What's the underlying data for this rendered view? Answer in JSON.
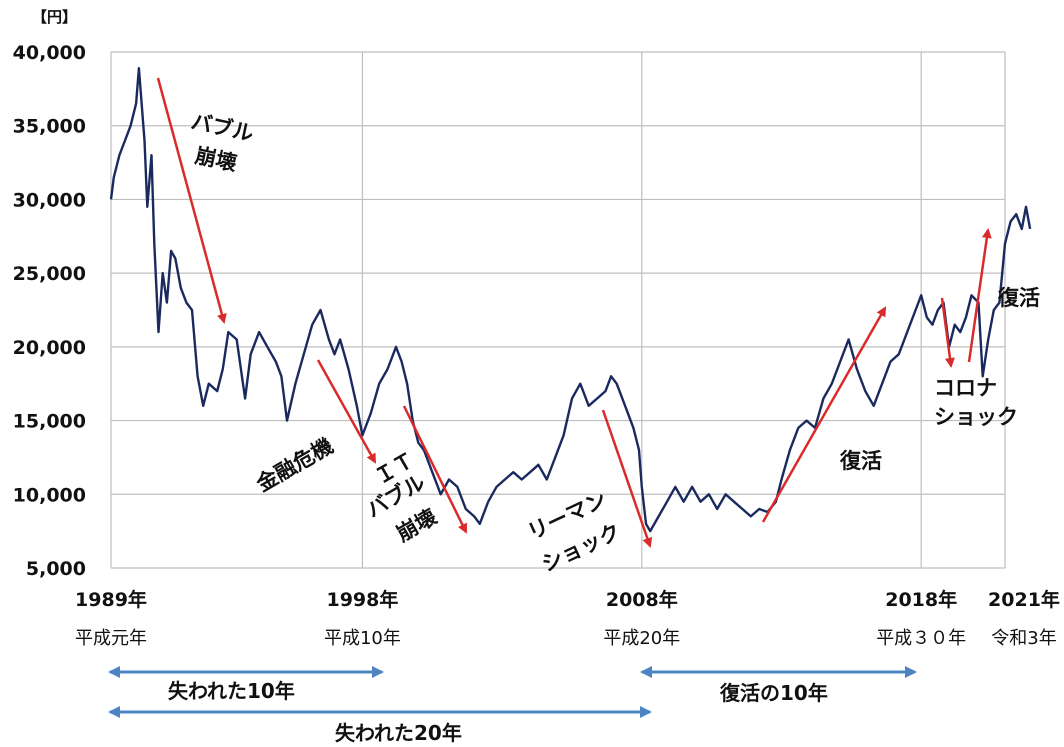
{
  "chart_data": {
    "type": "line",
    "unit_label": "【円】",
    "ylim": [
      5000,
      40000
    ],
    "y_ticks": [
      {
        "value": 40000,
        "label": "40,000"
      },
      {
        "value": 35000,
        "label": "35,000"
      },
      {
        "value": 30000,
        "label": "30,000"
      },
      {
        "value": 25000,
        "label": "25,000"
      },
      {
        "value": 20000,
        "label": "20,000"
      },
      {
        "value": 15000,
        "label": "15,000"
      },
      {
        "value": 10000,
        "label": "10,000"
      },
      {
        "value": 5000,
        "label": "5,000"
      }
    ],
    "xlim": [
      1989,
      2021
    ],
    "x_ticks": [
      {
        "value": 1989,
        "label": "1989年",
        "era": "平成元年"
      },
      {
        "value": 1998,
        "label": "1998年",
        "era": "平成10年"
      },
      {
        "value": 2008,
        "label": "2008年",
        "era": "平成20年"
      },
      {
        "value": 2018,
        "label": "2018年",
        "era": "平成３０年"
      },
      {
        "value": 2021,
        "label": "2021年",
        "era": "令和3年"
      }
    ],
    "grid": true,
    "series": [
      {
        "color": "#1a2a5e",
        "points": [
          [
            1989.0,
            30000
          ],
          [
            1989.1,
            31500
          ],
          [
            1989.3,
            33000
          ],
          [
            1989.5,
            34000
          ],
          [
            1989.7,
            35000
          ],
          [
            1989.9,
            36500
          ],
          [
            1990.0,
            38900
          ],
          [
            1990.2,
            34000
          ],
          [
            1990.3,
            29500
          ],
          [
            1990.45,
            33000
          ],
          [
            1990.55,
            27000
          ],
          [
            1990.7,
            21000
          ],
          [
            1990.85,
            25000
          ],
          [
            1991.0,
            23000
          ],
          [
            1991.15,
            26500
          ],
          [
            1991.3,
            26000
          ],
          [
            1991.5,
            24000
          ],
          [
            1991.7,
            23000
          ],
          [
            1991.9,
            22500
          ],
          [
            1992.1,
            18000
          ],
          [
            1992.3,
            16000
          ],
          [
            1992.5,
            17500
          ],
          [
            1992.8,
            17000
          ],
          [
            1993.0,
            18500
          ],
          [
            1993.2,
            21000
          ],
          [
            1993.5,
            20500
          ],
          [
            1993.8,
            16500
          ],
          [
            1994.0,
            19500
          ],
          [
            1994.3,
            21000
          ],
          [
            1994.6,
            20000
          ],
          [
            1994.9,
            19000
          ],
          [
            1995.1,
            18000
          ],
          [
            1995.3,
            15000
          ],
          [
            1995.6,
            17500
          ],
          [
            1995.9,
            19500
          ],
          [
            1996.2,
            21500
          ],
          [
            1996.5,
            22500
          ],
          [
            1996.8,
            20500
          ],
          [
            1997.0,
            19500
          ],
          [
            1997.2,
            20500
          ],
          [
            1997.5,
            18500
          ],
          [
            1997.8,
            16000
          ],
          [
            1998.0,
            14000
          ],
          [
            1998.3,
            15500
          ],
          [
            1998.6,
            17500
          ],
          [
            1998.9,
            18500
          ],
          [
            1999.2,
            20000
          ],
          [
            1999.4,
            19000
          ],
          [
            1999.6,
            17500
          ],
          [
            1999.8,
            15000
          ],
          [
            2000.0,
            13500
          ],
          [
            2000.2,
            13000
          ],
          [
            2000.5,
            11500
          ],
          [
            2000.8,
            10000
          ],
          [
            2001.1,
            11000
          ],
          [
            2001.4,
            10500
          ],
          [
            2001.7,
            9000
          ],
          [
            2002.0,
            8500
          ],
          [
            2002.2,
            8000
          ],
          [
            2002.5,
            9500
          ],
          [
            2002.8,
            10500
          ],
          [
            2003.1,
            11000
          ],
          [
            2003.4,
            11500
          ],
          [
            2003.7,
            11000
          ],
          [
            2004.0,
            11500
          ],
          [
            2004.3,
            12000
          ],
          [
            2004.6,
            11000
          ],
          [
            2004.9,
            12500
          ],
          [
            2005.2,
            14000
          ],
          [
            2005.5,
            16500
          ],
          [
            2005.8,
            17500
          ],
          [
            2006.1,
            16000
          ],
          [
            2006.4,
            16500
          ],
          [
            2006.7,
            17000
          ],
          [
            2006.9,
            18000
          ],
          [
            2007.1,
            17500
          ],
          [
            2007.4,
            16000
          ],
          [
            2007.7,
            14500
          ],
          [
            2007.9,
            13000
          ],
          [
            2008.0,
            10500
          ],
          [
            2008.15,
            8000
          ],
          [
            2008.3,
            7500
          ],
          [
            2008.6,
            8500
          ],
          [
            2008.9,
            9500
          ],
          [
            2009.2,
            10500
          ],
          [
            2009.5,
            9500
          ],
          [
            2009.8,
            10500
          ],
          [
            2010.1,
            9500
          ],
          [
            2010.4,
            10000
          ],
          [
            2010.7,
            9000
          ],
          [
            2011.0,
            10000
          ],
          [
            2011.3,
            9500
          ],
          [
            2011.6,
            9000
          ],
          [
            2011.9,
            8500
          ],
          [
            2012.2,
            9000
          ],
          [
            2012.5,
            8800
          ],
          [
            2012.8,
            9500
          ],
          [
            2013.0,
            11000
          ],
          [
            2013.3,
            13000
          ],
          [
            2013.6,
            14500
          ],
          [
            2013.9,
            15000
          ],
          [
            2014.2,
            14500
          ],
          [
            2014.5,
            16500
          ],
          [
            2014.8,
            17500
          ],
          [
            2015.1,
            19000
          ],
          [
            2015.4,
            20500
          ],
          [
            2015.7,
            18500
          ],
          [
            2016.0,
            17000
          ],
          [
            2016.3,
            16000
          ],
          [
            2016.6,
            17500
          ],
          [
            2016.9,
            19000
          ],
          [
            2017.2,
            19500
          ],
          [
            2017.5,
            21000
          ],
          [
            2017.8,
            22500
          ],
          [
            2018.0,
            23500
          ],
          [
            2018.2,
            22000
          ],
          [
            2018.4,
            21500
          ],
          [
            2018.6,
            22500
          ],
          [
            2018.8,
            23000
          ],
          [
            2019.0,
            20000
          ],
          [
            2019.2,
            21500
          ],
          [
            2019.4,
            21000
          ],
          [
            2019.6,
            22000
          ],
          [
            2019.8,
            23500
          ],
          [
            2020.05,
            23000
          ],
          [
            2020.2,
            18000
          ],
          [
            2020.4,
            20500
          ],
          [
            2020.6,
            22500
          ],
          [
            2020.8,
            23000
          ],
          [
            2021.0,
            27000
          ],
          [
            2021.2,
            28500
          ],
          [
            2021.4,
            29000
          ],
          [
            2021.6,
            28000
          ],
          [
            2021.75,
            29500
          ],
          [
            2021.9,
            28000
          ]
        ]
      }
    ],
    "annotations": [
      {
        "text": [
          "バブル",
          "崩壊"
        ],
        "arrow": "down"
      },
      {
        "text": [
          "金融危機"
        ],
        "arrow": "down"
      },
      {
        "text": [
          "ＩＴ",
          "バブル",
          "崩壊"
        ],
        "arrow": "down"
      },
      {
        "text": [
          "リーマン",
          "ショック"
        ],
        "arrow": "down"
      },
      {
        "text": [
          "復活"
        ],
        "arrow": "up"
      },
      {
        "text": [
          "コロナ",
          "ショック"
        ],
        "arrow": "down"
      },
      {
        "text": [
          "復活"
        ],
        "arrow": "up"
      }
    ],
    "period_labels": [
      {
        "label": "失われた10年",
        "from": 1989,
        "to": 1998
      },
      {
        "label": "失われた20年",
        "from": 1989,
        "to": 2008
      },
      {
        "label": "復活の10年",
        "from": 2008,
        "to": 2018
      }
    ],
    "colors": {
      "line": "#1a2a5e",
      "arrow_red": "#d92b2b",
      "period_arrow": "#4e84c4",
      "grid": "#bfbfbf"
    }
  }
}
